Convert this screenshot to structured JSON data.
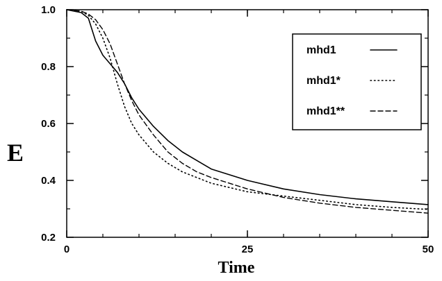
{
  "chart_data": {
    "type": "line",
    "xlabel": "Time",
    "ylabel": "E",
    "xlim": [
      0,
      50
    ],
    "ylim": [
      0.2,
      1.0
    ],
    "x_ticks": [
      "0",
      "25",
      "50"
    ],
    "y_ticks": [
      "0.2",
      "0.4",
      "0.6",
      "0.8",
      "1.0"
    ],
    "grid": false,
    "legend_position": "top-right",
    "series": [
      {
        "name": "mhd1",
        "style": "solid",
        "x": [
          0,
          2,
          3,
          3.5,
          4,
          5,
          6,
          7,
          8,
          9,
          10,
          12,
          14,
          16,
          18,
          20,
          25,
          30,
          35,
          40,
          45,
          50
        ],
        "y": [
          1.0,
          0.99,
          0.97,
          0.93,
          0.89,
          0.84,
          0.81,
          0.78,
          0.74,
          0.69,
          0.65,
          0.59,
          0.54,
          0.5,
          0.47,
          0.44,
          0.4,
          0.37,
          0.35,
          0.335,
          0.325,
          0.315
        ]
      },
      {
        "name": "mhd1*",
        "style": "dotted",
        "x": [
          0,
          2,
          3,
          4,
          5,
          6,
          7,
          8,
          9,
          10,
          12,
          14,
          16,
          18,
          20,
          25,
          30,
          35,
          40,
          45,
          50
        ],
        "y": [
          1.0,
          0.995,
          0.98,
          0.95,
          0.9,
          0.83,
          0.74,
          0.66,
          0.6,
          0.56,
          0.5,
          0.46,
          0.43,
          0.41,
          0.39,
          0.36,
          0.345,
          0.33,
          0.315,
          0.305,
          0.298
        ]
      },
      {
        "name": "mhd1**",
        "style": "dashed",
        "x": [
          0,
          2,
          3,
          4,
          5,
          6,
          7,
          8,
          9,
          10,
          12,
          14,
          16,
          18,
          20,
          25,
          30,
          35,
          40,
          45,
          50
        ],
        "y": [
          1.0,
          0.995,
          0.985,
          0.965,
          0.93,
          0.88,
          0.81,
          0.74,
          0.68,
          0.63,
          0.56,
          0.5,
          0.46,
          0.43,
          0.41,
          0.37,
          0.34,
          0.32,
          0.305,
          0.295,
          0.285
        ]
      }
    ]
  }
}
